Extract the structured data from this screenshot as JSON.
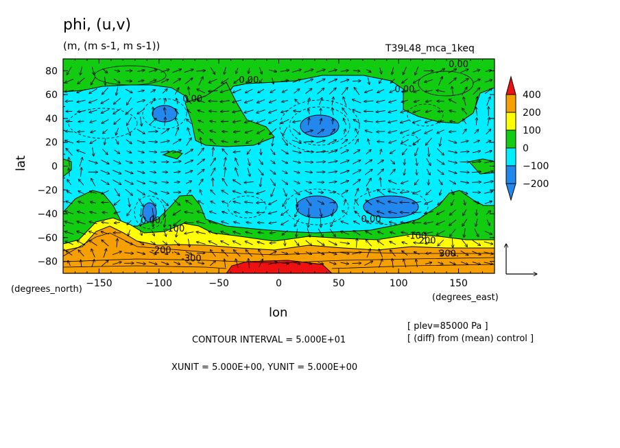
{
  "header": {
    "title": "phi, (u,v)",
    "units": "(m, (m s-1, m s-1))",
    "run_name": "T39L48_mca_1keq"
  },
  "axes": {
    "xlabel": "lon",
    "ylabel": "lat",
    "x_unit_note": "(degrees_east)",
    "y_unit_note": "(degrees_north)"
  },
  "info": {
    "plev": "[ plev=85000 Pa ]",
    "diff": "[ (diff) from (mean) control ]",
    "contour": "CONTOUR INTERVAL = 5.000E+01",
    "vector_units": "XUNIT = 5.000E+00, YUNIT = 5.000E+00"
  },
  "colors": {
    "red": "#ee1111",
    "orange": "#f5a000",
    "yellow": "#ffff00",
    "green": "#11cc11",
    "cyan": "#00eeff",
    "blue": "#2288ee"
  },
  "chart_data": {
    "type": "heatmap",
    "description_type": "contour map with wind vectors",
    "x_range": [
      -180,
      180
    ],
    "y_range": [
      -90,
      90
    ],
    "x_ticks": [
      -150,
      -100,
      -50,
      0,
      50,
      100,
      150
    ],
    "x_tick_labels": [
      "−150",
      "−100",
      "−50",
      "0",
      "50",
      "100",
      "150"
    ],
    "y_ticks": [
      80,
      60,
      40,
      20,
      0,
      -20,
      -40,
      -60,
      -80
    ],
    "y_tick_labels": [
      "80",
      "60",
      "40",
      "20",
      "0",
      "−20",
      "−40",
      "−60",
      "−80"
    ],
    "colorbar_labels": [
      "400",
      "200",
      "100",
      "0",
      "−100",
      "−200"
    ],
    "contour_labels": [
      {
        "text": "0.00",
        "lon": -107,
        "lat": -48
      },
      {
        "text": "-100",
        "lon": -87,
        "lat": -55
      },
      {
        "text": "-200.",
        "lon": -97,
        "lat": -73
      },
      {
        "text": "-300",
        "lon": -73,
        "lat": -80
      },
      {
        "text": "0.00",
        "lon": 77,
        "lat": -47
      },
      {
        "text": "-100",
        "lon": 115,
        "lat": -61
      },
      {
        "text": "200",
        "lon": 124,
        "lat": -65
      },
      {
        "text": "300.",
        "lon": 142,
        "lat": -76
      },
      {
        "text": "0.00",
        "lon": -72,
        "lat": 54
      },
      {
        "text": "0.00",
        "lon": -25,
        "lat": 70
      },
      {
        "text": "0.00",
        "lon": 105,
        "lat": 62
      },
      {
        "text": "0.00",
        "lon": 150,
        "lat": 83
      }
    ],
    "grid": false
  }
}
